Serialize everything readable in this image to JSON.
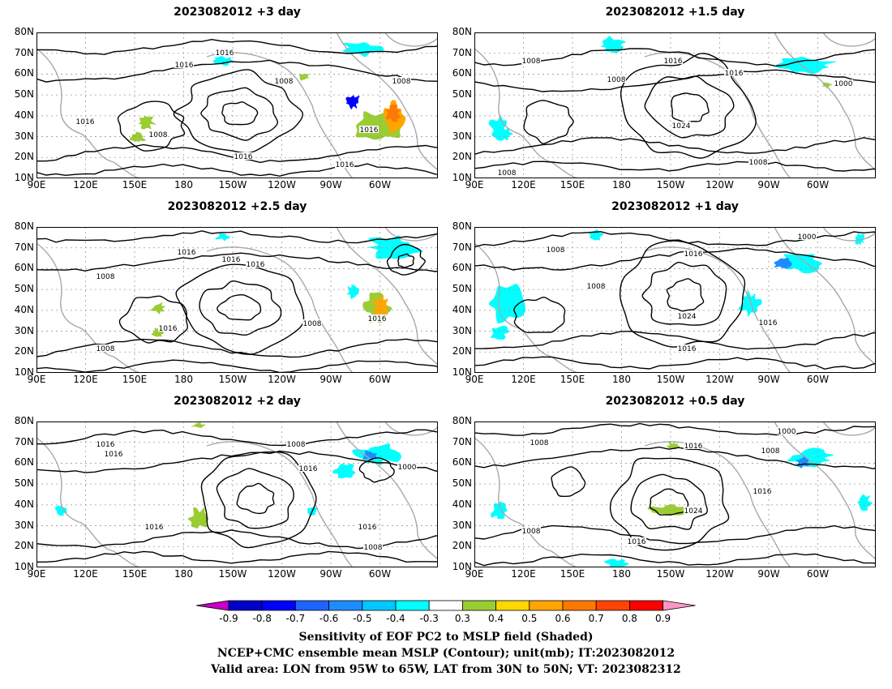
{
  "panels": [
    {
      "title": "2023082012  +3 day",
      "contour_labels": [
        "1016",
        "1016",
        "1008",
        "1016",
        "1008",
        "1016",
        "1016",
        "1016",
        "1008"
      ]
    },
    {
      "title": "2023082012  +1.5 day",
      "contour_labels": [
        "1008",
        "1008",
        "1016",
        "1016",
        "1000",
        "1024",
        "1008",
        "1008"
      ]
    },
    {
      "title": "2023082012  +2.5 day",
      "contour_labels": [
        "1016",
        "1016",
        "1016",
        "1008",
        "1016",
        "1008",
        "1008",
        "1016"
      ]
    },
    {
      "title": "2023082012  +1 day",
      "contour_labels": [
        "1008",
        "1016",
        "1000",
        "1008",
        "1024",
        "1016",
        "1016"
      ]
    },
    {
      "title": "2023082012  +2 day",
      "contour_labels": [
        "1016",
        "1008",
        "1016",
        "1016",
        "1000",
        "1016",
        "1016",
        "1008"
      ]
    },
    {
      "title": "2023082012  +0.5 day",
      "contour_labels": [
        "1008",
        "1016",
        "1008",
        "1000",
        "1016",
        "1016",
        "1024",
        "1008",
        "1016"
      ]
    }
  ],
  "axes": {
    "lat_labels": [
      "80N",
      "70N",
      "60N",
      "50N",
      "40N",
      "30N",
      "20N",
      "10N"
    ],
    "lon_labels": [
      "90E",
      "120E",
      "150E",
      "180",
      "150W",
      "120W",
      "90W",
      "60W"
    ]
  },
  "colorbar": {
    "tick_labels": [
      "-0.9",
      "-0.8",
      "-0.7",
      "-0.6",
      "-0.5",
      "-0.4",
      "-0.3",
      "0.3",
      "0.4",
      "0.5",
      "0.6",
      "0.7",
      "0.8",
      "0.9"
    ],
    "colors": [
      "#c800c8",
      "#0000c8",
      "#0000ff",
      "#1e64ff",
      "#1e8cff",
      "#00c8ff",
      "#00ffff",
      "#ffffff",
      "#9acd32",
      "#ffd700",
      "#ffa500",
      "#ff7800",
      "#ff4500",
      "#ff0000",
      "#ff96c8"
    ]
  },
  "caption": {
    "line1": "Sensitivity of EOF PC2 to MSLP field (Shaded)",
    "line2": "NCEP+CMC ensemble mean MSLP (Contour); unit(mb); IT:2023082012",
    "line3": "Valid area: LON from 95W to 65W, LAT from 30N to 50N; VT: 2023082312"
  }
}
